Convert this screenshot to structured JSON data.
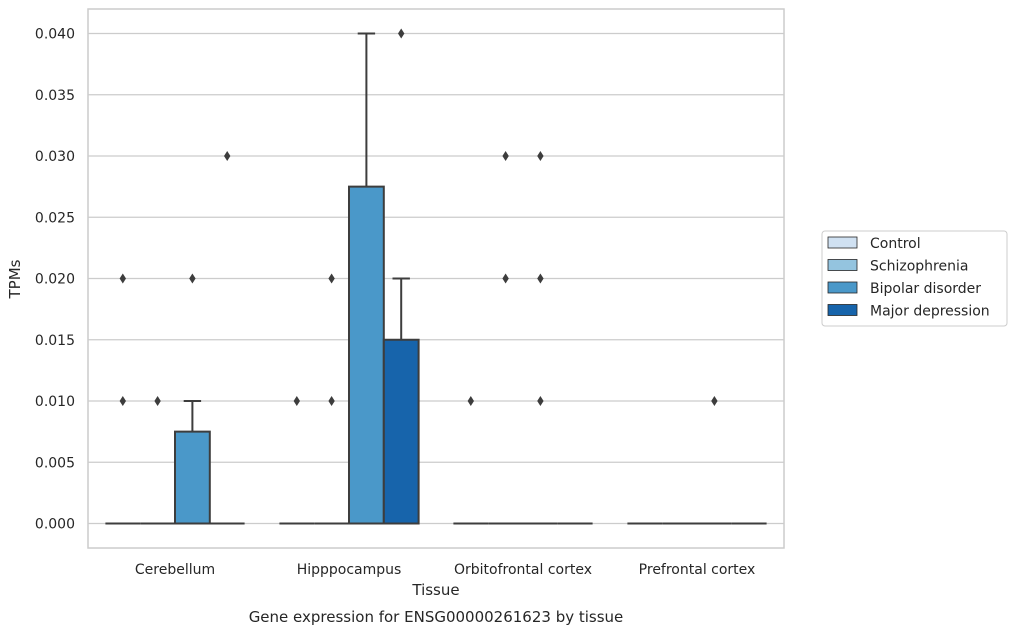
{
  "chart_data": {
    "type": "box",
    "xlabel": "Tissue",
    "ylabel": "TPMs",
    "caption": "Gene expression for ENSG00000261623 by tissue",
    "ylim": [
      -0.002,
      0.042
    ],
    "yticks": [
      "0.000",
      "0.005",
      "0.010",
      "0.015",
      "0.020",
      "0.025",
      "0.030",
      "0.035",
      "0.040"
    ],
    "grid": true,
    "legend_position": "right",
    "categories": [
      "Cerebellum",
      "Hipppocampus",
      "Orbitofrontal cortex",
      "Prefrontal cortex"
    ],
    "series": [
      {
        "name": "Control",
        "color": "#d0e1f2",
        "boxes": [
          {
            "q1": 0,
            "median": 0,
            "q3": 0,
            "whisker_low": 0,
            "whisker_high": 0,
            "outliers": [
              0.01,
              0.02
            ]
          },
          {
            "q1": 0,
            "median": 0,
            "q3": 0,
            "whisker_low": 0,
            "whisker_high": 0,
            "outliers": [
              0.01
            ]
          },
          {
            "q1": 0,
            "median": 0,
            "q3": 0,
            "whisker_low": 0,
            "whisker_high": 0,
            "outliers": [
              0.01
            ]
          },
          {
            "q1": 0,
            "median": 0,
            "q3": 0,
            "whisker_low": 0,
            "whisker_high": 0,
            "outliers": []
          }
        ]
      },
      {
        "name": "Schizophrenia",
        "color": "#94c4df",
        "boxes": [
          {
            "q1": 0,
            "median": 0,
            "q3": 0,
            "whisker_low": 0,
            "whisker_high": 0,
            "outliers": [
              0.01
            ]
          },
          {
            "q1": 0,
            "median": 0,
            "q3": 0,
            "whisker_low": 0,
            "whisker_high": 0,
            "outliers": [
              0.01,
              0.02
            ]
          },
          {
            "q1": 0,
            "median": 0,
            "q3": 0,
            "whisker_low": 0,
            "whisker_high": 0,
            "outliers": [
              0.02,
              0.03
            ]
          },
          {
            "q1": 0,
            "median": 0,
            "q3": 0,
            "whisker_low": 0,
            "whisker_high": 0,
            "outliers": []
          }
        ]
      },
      {
        "name": "Bipolar disorder",
        "color": "#4a98c9",
        "boxes": [
          {
            "q1": 0,
            "median": 0,
            "q3": 0.0075,
            "whisker_low": 0,
            "whisker_high": 0.01,
            "outliers": [
              0.02
            ]
          },
          {
            "q1": 0,
            "median": 0,
            "q3": 0.0275,
            "whisker_low": 0,
            "whisker_high": 0.04,
            "outliers": []
          },
          {
            "q1": 0,
            "median": 0,
            "q3": 0,
            "whisker_low": 0,
            "whisker_high": 0,
            "outliers": [
              0.01,
              0.02,
              0.03
            ]
          },
          {
            "q1": 0,
            "median": 0,
            "q3": 0,
            "whisker_low": 0,
            "whisker_high": 0,
            "outliers": [
              0.01
            ]
          }
        ]
      },
      {
        "name": "Major depression",
        "color": "#1764ab",
        "boxes": [
          {
            "q1": 0,
            "median": 0,
            "q3": 0,
            "whisker_low": 0,
            "whisker_high": 0,
            "outliers": [
              0.03
            ]
          },
          {
            "q1": 0,
            "median": 0,
            "q3": 0.015,
            "whisker_low": 0,
            "whisker_high": 0.02,
            "outliers": [
              0.04
            ]
          },
          {
            "q1": 0,
            "median": 0,
            "q3": 0,
            "whisker_low": 0,
            "whisker_high": 0,
            "outliers": []
          },
          {
            "q1": 0,
            "median": 0,
            "q3": 0,
            "whisker_low": 0,
            "whisker_high": 0,
            "outliers": []
          }
        ]
      }
    ]
  }
}
